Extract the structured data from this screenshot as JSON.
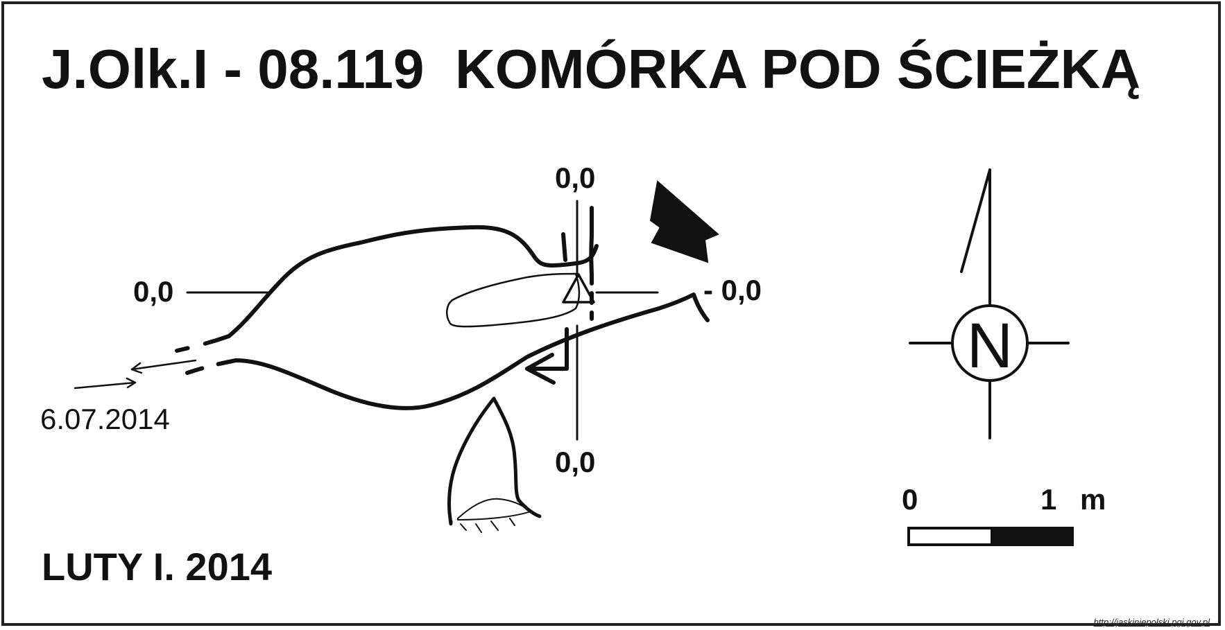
{
  "title": "J.Olk.I - 08.119  KOMÓRKA POD ŚCIEŻKĄ",
  "author": "LUTY I. 2014",
  "survey_date": "6.07.2014",
  "elevations": {
    "top": "0,0",
    "left": "0,0",
    "right": "- 0,0",
    "bottom": "0,0"
  },
  "north_label": "N",
  "scale": {
    "start": "0",
    "end": "1",
    "unit": "m"
  },
  "credit": "http://jaskiniepolski.pgi.gov.pl",
  "colors": {
    "ink": "#111111",
    "background": "#ffffff"
  },
  "icons": [
    "north-arrow-icon",
    "compass-icon",
    "entrance-arrow-icon",
    "survey-point-icon",
    "scale-bar-icon"
  ]
}
